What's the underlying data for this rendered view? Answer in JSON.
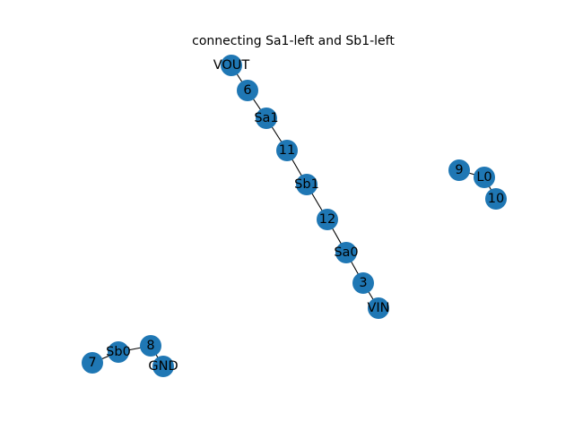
{
  "title": "connecting Sa1-left and Sb1-left",
  "node_color": "#1f77b4",
  "edge_color": "#000000",
  "nodes": [
    "VOUT",
    "6",
    "Sa1",
    "11",
    "Sb1",
    "12",
    "Sa0",
    "3",
    "VIN",
    "9",
    "L0",
    "10",
    "7",
    "Sb0",
    "8",
    "GND"
  ],
  "edges": [
    [
      "VOUT",
      "6"
    ],
    [
      "6",
      "Sa1"
    ],
    [
      "Sa1",
      "11"
    ],
    [
      "11",
      "Sb1"
    ],
    [
      "Sb1",
      "12"
    ],
    [
      "12",
      "Sa0"
    ],
    [
      "Sa0",
      "3"
    ],
    [
      "3",
      "VIN"
    ],
    [
      "9",
      "L0"
    ],
    [
      "L0",
      "10"
    ],
    [
      "7",
      "Sb0"
    ],
    [
      "Sb0",
      "8"
    ],
    [
      "8",
      "GND"
    ]
  ]
}
